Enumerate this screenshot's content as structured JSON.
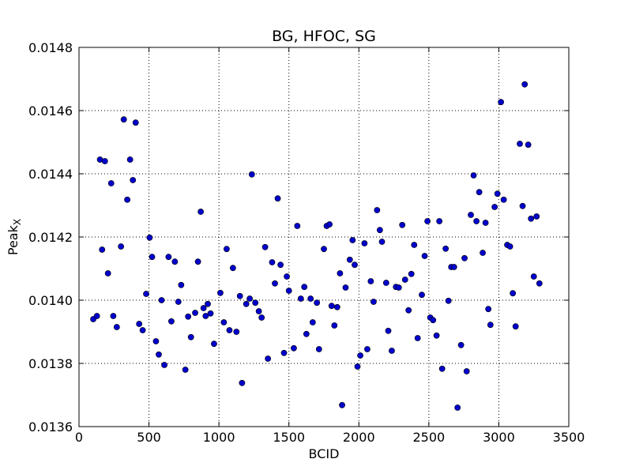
{
  "chart_data": {
    "type": "scatter",
    "title": "BG, HFOC, SG",
    "xlabel": "BCID",
    "ylabel_main": "Peak",
    "ylabel_sub": "X",
    "xlim": [
      0,
      3500
    ],
    "ylim": [
      0.0136,
      0.0148
    ],
    "xticks": [
      0,
      500,
      1000,
      1500,
      2000,
      2500,
      3000,
      3500
    ],
    "xtick_labels": [
      "0",
      "500",
      "1000",
      "1500",
      "2000",
      "2500",
      "3000",
      "3500"
    ],
    "yticks": [
      0.0136,
      0.0138,
      0.014,
      0.0142,
      0.0144,
      0.0146,
      0.0148
    ],
    "ytick_labels": [
      "0.0136",
      "0.0138",
      "0.0140",
      "0.0142",
      "0.0144",
      "0.0146",
      "0.0148"
    ],
    "grid": true,
    "marker_color": "#0000cc",
    "error_bar": 5e-06,
    "points": [
      [
        102,
        0.01394
      ],
      [
        128,
        0.01395
      ],
      [
        150,
        0.014445
      ],
      [
        165,
        0.01416
      ],
      [
        185,
        0.01444
      ],
      [
        207,
        0.014085
      ],
      [
        230,
        0.01437
      ],
      [
        245,
        0.01395
      ],
      [
        270,
        0.013915
      ],
      [
        300,
        0.01417
      ],
      [
        320,
        0.014572
      ],
      [
        345,
        0.014318
      ],
      [
        365,
        0.014445
      ],
      [
        385,
        0.01438
      ],
      [
        405,
        0.014562
      ],
      [
        430,
        0.013925
      ],
      [
        455,
        0.013905
      ],
      [
        480,
        0.01402
      ],
      [
        505,
        0.014198
      ],
      [
        522,
        0.014137
      ],
      [
        550,
        0.01387
      ],
      [
        570,
        0.013828
      ],
      [
        590,
        0.014
      ],
      [
        610,
        0.013795
      ],
      [
        640,
        0.014137
      ],
      [
        660,
        0.013933
      ],
      [
        685,
        0.014122
      ],
      [
        710,
        0.013995
      ],
      [
        730,
        0.014048
      ],
      [
        760,
        0.01378
      ],
      [
        780,
        0.013948
      ],
      [
        800,
        0.013883
      ],
      [
        830,
        0.01396
      ],
      [
        850,
        0.014122
      ],
      [
        870,
        0.01428
      ],
      [
        890,
        0.013975
      ],
      [
        905,
        0.01395
      ],
      [
        920,
        0.013988
      ],
      [
        940,
        0.013958
      ],
      [
        965,
        0.013862
      ],
      [
        1010,
        0.014023
      ],
      [
        1035,
        0.01393
      ],
      [
        1055,
        0.014162
      ],
      [
        1075,
        0.013905
      ],
      [
        1100,
        0.014102
      ],
      [
        1125,
        0.0139
      ],
      [
        1150,
        0.014013
      ],
      [
        1165,
        0.013738
      ],
      [
        1195,
        0.013988
      ],
      [
        1220,
        0.014005
      ],
      [
        1235,
        0.014398
      ],
      [
        1260,
        0.013992
      ],
      [
        1285,
        0.013965
      ],
      [
        1305,
        0.013945
      ],
      [
        1330,
        0.014168
      ],
      [
        1350,
        0.013815
      ],
      [
        1380,
        0.01412
      ],
      [
        1400,
        0.014053
      ],
      [
        1420,
        0.014322
      ],
      [
        1440,
        0.014112
      ],
      [
        1465,
        0.013833
      ],
      [
        1485,
        0.014075
      ],
      [
        1500,
        0.01403
      ],
      [
        1535,
        0.013848
      ],
      [
        1560,
        0.014235
      ],
      [
        1585,
        0.014005
      ],
      [
        1610,
        0.014042
      ],
      [
        1625,
        0.013893
      ],
      [
        1655,
        0.014005
      ],
      [
        1670,
        0.01393
      ],
      [
        1700,
        0.013992
      ],
      [
        1715,
        0.013845
      ],
      [
        1750,
        0.014162
      ],
      [
        1770,
        0.014235
      ],
      [
        1790,
        0.01424
      ],
      [
        1805,
        0.013982
      ],
      [
        1825,
        0.01392
      ],
      [
        1845,
        0.013978
      ],
      [
        1865,
        0.014085
      ],
      [
        1880,
        0.013668
      ],
      [
        1905,
        0.01404
      ],
      [
        1935,
        0.014128
      ],
      [
        1955,
        0.01419
      ],
      [
        1970,
        0.014112
      ],
      [
        1990,
        0.01379
      ],
      [
        2010,
        0.013825
      ],
      [
        2040,
        0.01418
      ],
      [
        2060,
        0.013845
      ],
      [
        2085,
        0.01406
      ],
      [
        2105,
        0.013995
      ],
      [
        2130,
        0.014285
      ],
      [
        2150,
        0.014222
      ],
      [
        2165,
        0.014185
      ],
      [
        2195,
        0.014055
      ],
      [
        2210,
        0.013903
      ],
      [
        2235,
        0.01384
      ],
      [
        2265,
        0.014042
      ],
      [
        2285,
        0.01404
      ],
      [
        2310,
        0.014238
      ],
      [
        2330,
        0.014065
      ],
      [
        2355,
        0.013968
      ],
      [
        2375,
        0.014083
      ],
      [
        2395,
        0.014175
      ],
      [
        2420,
        0.01388
      ],
      [
        2450,
        0.014017
      ],
      [
        2470,
        0.01414
      ],
      [
        2490,
        0.01425
      ],
      [
        2510,
        0.013945
      ],
      [
        2530,
        0.013937
      ],
      [
        2555,
        0.013888
      ],
      [
        2575,
        0.01425
      ],
      [
        2595,
        0.013783
      ],
      [
        2620,
        0.014163
      ],
      [
        2640,
        0.013998
      ],
      [
        2660,
        0.014105
      ],
      [
        2680,
        0.014105
      ],
      [
        2705,
        0.01366
      ],
      [
        2730,
        0.013858
      ],
      [
        2755,
        0.014133
      ],
      [
        2770,
        0.013775
      ],
      [
        2800,
        0.01427
      ],
      [
        2820,
        0.014395
      ],
      [
        2840,
        0.01425
      ],
      [
        2860,
        0.014342
      ],
      [
        2885,
        0.01415
      ],
      [
        2905,
        0.014245
      ],
      [
        2925,
        0.013972
      ],
      [
        2940,
        0.013922
      ],
      [
        2970,
        0.014295
      ],
      [
        2990,
        0.014337
      ],
      [
        3015,
        0.014627
      ],
      [
        3035,
        0.014318
      ],
      [
        3060,
        0.014175
      ],
      [
        3080,
        0.01417
      ],
      [
        3100,
        0.014022
      ],
      [
        3120,
        0.013917
      ],
      [
        3150,
        0.014495
      ],
      [
        3170,
        0.014298
      ],
      [
        3185,
        0.014683
      ],
      [
        3210,
        0.014492
      ],
      [
        3230,
        0.014258
      ],
      [
        3250,
        0.014075
      ],
      [
        3270,
        0.014265
      ],
      [
        3290,
        0.014053
      ]
    ]
  }
}
